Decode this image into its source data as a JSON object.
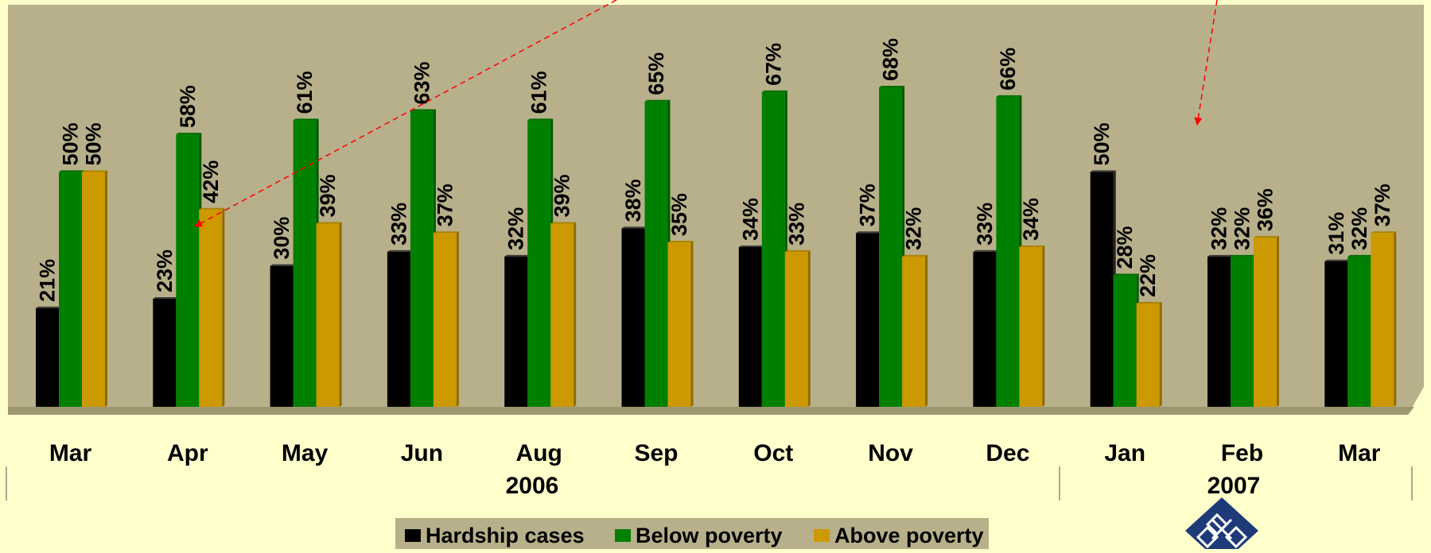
{
  "colors": {
    "page_background": "#FFFFCC",
    "plot_background": "#B8B08A",
    "hardship": "#000000",
    "below": "#008000",
    "above": "#CC9900",
    "arrow": "#FF0000",
    "logo": "#1E3A78"
  },
  "icons": {
    "logo": "knot-logo-icon"
  },
  "chart_data": {
    "type": "bar",
    "categories": [
      "Mar",
      "Apr",
      "May",
      "Jun",
      "Aug",
      "Sep",
      "Oct",
      "Nov",
      "Dec",
      "Jan",
      "Feb",
      "Mar"
    ],
    "year_groups": [
      {
        "label": "2006",
        "categories": [
          "Mar",
          "Apr",
          "May",
          "Jun",
          "Aug",
          "Sep",
          "Oct",
          "Nov",
          "Dec"
        ]
      },
      {
        "label": "2007",
        "categories": [
          "Jan",
          "Feb",
          "Mar"
        ]
      }
    ],
    "series": [
      {
        "name": "Hardship cases",
        "color": "#000000",
        "values": [
          21,
          23,
          30,
          33,
          32,
          38,
          34,
          37,
          33,
          50,
          32,
          31
        ]
      },
      {
        "name": "Below poverty",
        "color": "#008000",
        "values": [
          50,
          58,
          61,
          63,
          61,
          65,
          67,
          68,
          66,
          28,
          32,
          32
        ]
      },
      {
        "name": "Above poverty",
        "color": "#CC9900",
        "values": [
          50,
          42,
          39,
          37,
          39,
          35,
          33,
          32,
          34,
          22,
          36,
          37
        ]
      }
    ],
    "value_suffix": "%",
    "ylim": [
      0,
      80
    ],
    "title": "",
    "xlabel": "",
    "ylabel": "",
    "grid": false,
    "legend_position": "bottom-center",
    "annotations": "two red dashed arrows from outside the top edge pointing down into the plot"
  }
}
